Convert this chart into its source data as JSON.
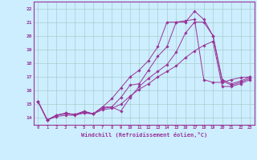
{
  "xlabel": "Windchill (Refroidissement éolien,°C)",
  "bg_color": "#cceeff",
  "grid_color": "#aacccc",
  "line_color": "#993399",
  "xlim": [
    -0.5,
    23.5
  ],
  "ylim": [
    13.5,
    22.5
  ],
  "xticks": [
    0,
    1,
    2,
    3,
    4,
    5,
    6,
    7,
    8,
    9,
    10,
    11,
    12,
    13,
    14,
    15,
    16,
    17,
    18,
    19,
    20,
    21,
    22,
    23
  ],
  "yticks": [
    14,
    15,
    16,
    17,
    18,
    19,
    20,
    21,
    22
  ],
  "series": [
    {
      "x": [
        0,
        1,
        2,
        3,
        4,
        5,
        6,
        7,
        8,
        9,
        10,
        11,
        12,
        13,
        14,
        15,
        16,
        17,
        18,
        19,
        20,
        21,
        22,
        23
      ],
      "y": [
        15.2,
        13.85,
        14.2,
        14.35,
        14.25,
        14.45,
        14.3,
        14.8,
        14.8,
        15.5,
        16.4,
        16.5,
        17.5,
        18.5,
        19.2,
        21.0,
        21.0,
        21.8,
        21.2,
        20.0,
        16.8,
        16.5,
        16.7,
        17.0
      ]
    },
    {
      "x": [
        0,
        1,
        2,
        3,
        4,
        5,
        6,
        7,
        8,
        9,
        10,
        11,
        12,
        13,
        14,
        15,
        16,
        17,
        18,
        19,
        20,
        21,
        22,
        23
      ],
      "y": [
        15.2,
        13.85,
        14.2,
        14.35,
        14.25,
        14.5,
        14.3,
        14.8,
        15.4,
        16.2,
        17.0,
        17.5,
        18.2,
        19.2,
        21.0,
        21.0,
        21.1,
        21.2,
        16.8,
        16.6,
        16.6,
        16.8,
        16.95,
        17.0
      ]
    },
    {
      "x": [
        0,
        1,
        2,
        3,
        4,
        5,
        6,
        7,
        8,
        9,
        10,
        11,
        12,
        13,
        14,
        15,
        16,
        17,
        18,
        19,
        20,
        21,
        22,
        23
      ],
      "y": [
        15.2,
        13.85,
        14.2,
        14.3,
        14.25,
        14.4,
        14.3,
        14.7,
        14.8,
        14.5,
        15.5,
        16.3,
        16.9,
        17.4,
        17.9,
        18.8,
        20.2,
        21.0,
        21.0,
        20.0,
        16.7,
        16.4,
        16.6,
        16.9
      ]
    },
    {
      "x": [
        0,
        1,
        2,
        3,
        4,
        5,
        6,
        7,
        8,
        9,
        10,
        11,
        12,
        13,
        14,
        15,
        16,
        17,
        18,
        19,
        20,
        21,
        22,
        23
      ],
      "y": [
        15.2,
        13.85,
        14.1,
        14.2,
        14.2,
        14.35,
        14.3,
        14.6,
        14.7,
        15.0,
        15.6,
        16.1,
        16.5,
        17.0,
        17.4,
        17.8,
        18.4,
        18.9,
        19.3,
        19.6,
        16.3,
        16.3,
        16.5,
        16.8
      ]
    }
  ]
}
